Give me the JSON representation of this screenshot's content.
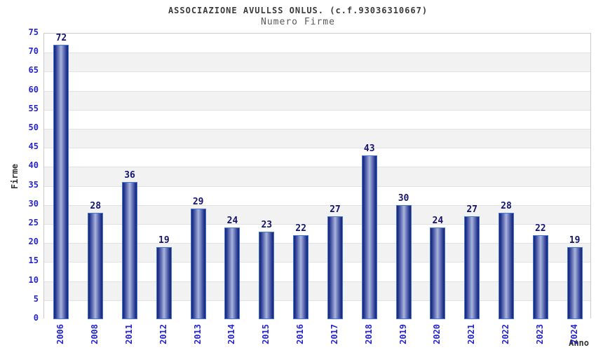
{
  "header": {
    "title": "ASSOCIAZIONE AVULLSS ONLUS. (c.f.93036310667)",
    "subtitle": "Numero Firme"
  },
  "chart_data": {
    "type": "bar",
    "title": "ASSOCIAZIONE AVULLSS ONLUS. (c.f.93036310667)",
    "subtitle": "Numero Firme",
    "categories": [
      "2006",
      "2008",
      "2011",
      "2012",
      "2013",
      "2014",
      "2015",
      "2016",
      "2017",
      "2018",
      "2019",
      "2020",
      "2021",
      "2022",
      "2023",
      "2024"
    ],
    "values": [
      72,
      28,
      36,
      19,
      29,
      24,
      23,
      22,
      27,
      43,
      30,
      24,
      27,
      28,
      22,
      19
    ],
    "xlabel": "Anno",
    "ylabel": "Firme",
    "ylim": [
      0,
      75
    ],
    "ytick_step": 5,
    "grid": true,
    "legend": "none",
    "band_colors": [
      "#ffffff",
      "#f2f2f2"
    ],
    "colors": {
      "tick_label": "#2525cf",
      "value_label": "#14146e",
      "bar_border": "#4478d4",
      "bar_dark": "#16246e",
      "bar_light": "#aab4dc",
      "grid_line": "#e2e2e2",
      "plot_border": "#cccccc",
      "axis_title": "#333333",
      "title": "#3a3a3a",
      "subtitle": "#5a5a5a"
    }
  }
}
